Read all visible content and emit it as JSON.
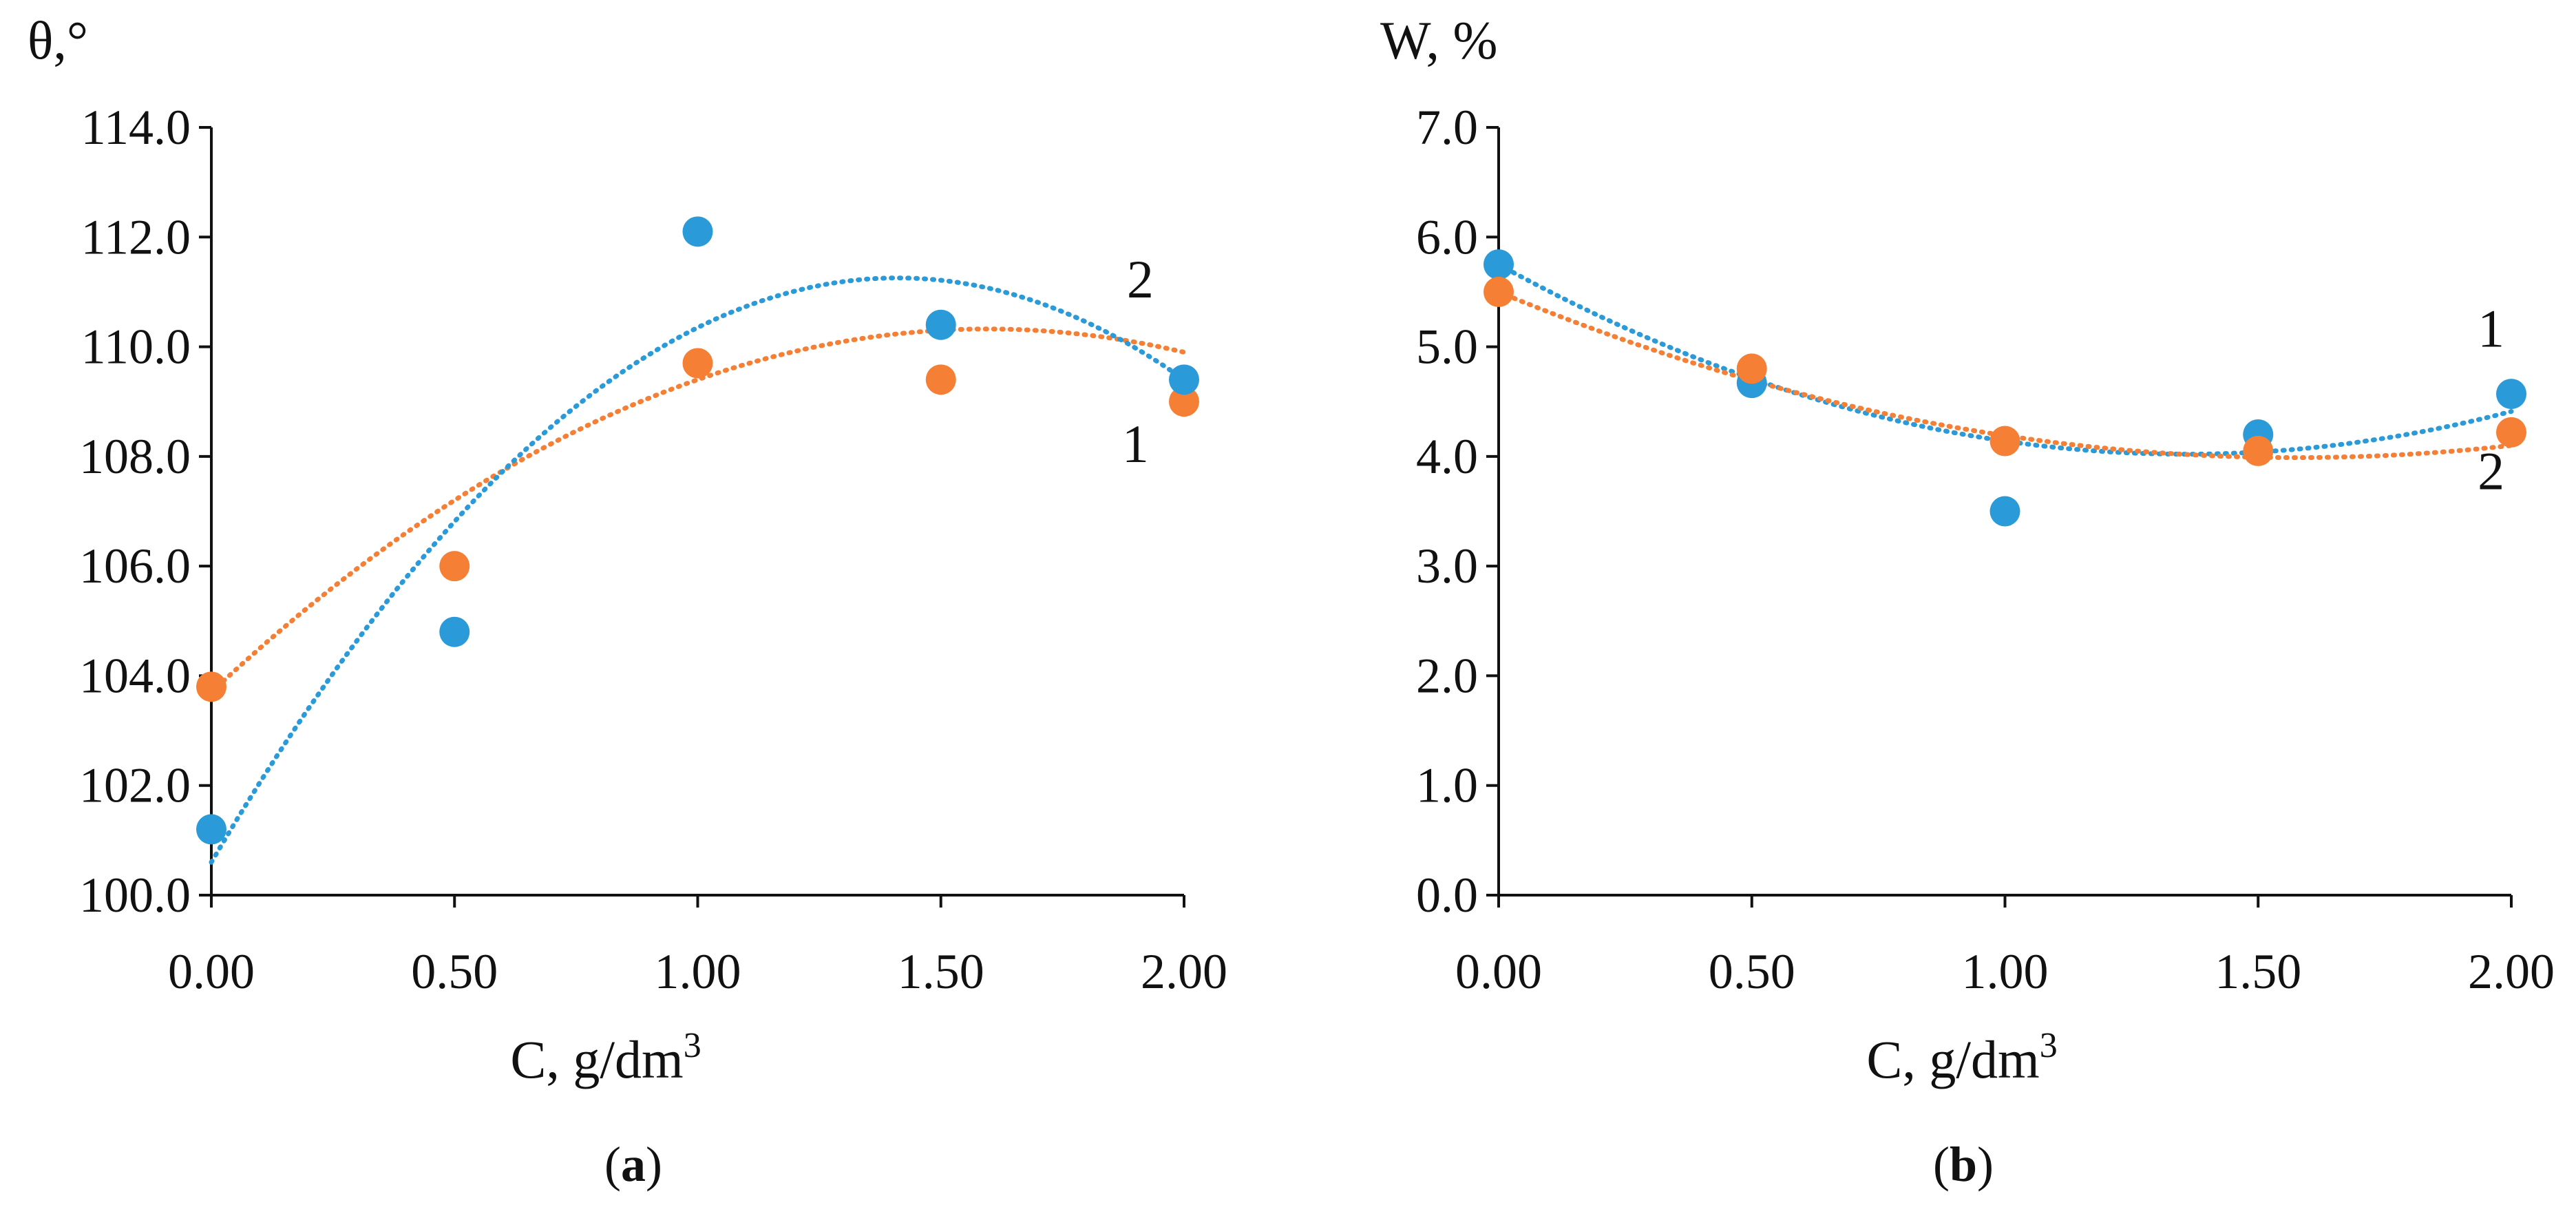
{
  "chart_data": [
    {
      "type": "scatter",
      "panel": "a",
      "panel_label": "a",
      "ylabel": "θ,°",
      "xlabel": "C, g/dm",
      "xlabel_sup": "3",
      "x_ticks": [
        "0.00",
        "0.50",
        "1.00",
        "1.50",
        "2.00"
      ],
      "y_ticks": [
        "100.0",
        "102.0",
        "104.0",
        "106.0",
        "108.0",
        "110.0",
        "112.0",
        "114.0"
      ],
      "xlim": [
        0,
        2
      ],
      "ylim": [
        100,
        114
      ],
      "series": [
        {
          "name": "1",
          "color": "#f47f35",
          "x": [
            0,
            0.5,
            1.0,
            1.5,
            2.0
          ],
          "y": [
            103.8,
            106.0,
            109.7,
            109.4,
            109.0
          ],
          "trend": [
            103.7,
            8.3,
            -2.6
          ]
        },
        {
          "name": "2",
          "color": "#2b9ad8",
          "x": [
            0,
            0.5,
            1.0,
            1.5,
            2.0
          ],
          "y": [
            101.2,
            104.8,
            112.1,
            110.4,
            109.4
          ],
          "trend": [
            100.6,
            15.1,
            -5.35
          ]
        }
      ],
      "curve_labels": [
        {
          "text": "2",
          "x": 1.91,
          "y": 110.9
        },
        {
          "text": "1",
          "x": 1.9,
          "y": 107.9
        }
      ]
    },
    {
      "type": "scatter",
      "panel": "b",
      "panel_label": "b",
      "ylabel": "W, %",
      "xlabel": "C, g/dm",
      "xlabel_sup": "3",
      "x_ticks": [
        "0.00",
        "0.50",
        "1.00",
        "1.50",
        "2.00"
      ],
      "y_ticks": [
        "0.0",
        "1.0",
        "2.0",
        "3.0",
        "4.0",
        "5.0",
        "6.0",
        "7.0"
      ],
      "xlim": [
        0,
        2
      ],
      "ylim": [
        0,
        7
      ],
      "series": [
        {
          "name": "1",
          "color": "#2b9ad8",
          "x": [
            0,
            0.5,
            1.0,
            1.5,
            2.0
          ],
          "y": [
            5.75,
            4.67,
            3.5,
            4.2,
            4.57
          ],
          "trend": [
            5.75,
            -2.55,
            0.94
          ]
        },
        {
          "name": "2",
          "color": "#f47f35",
          "x": [
            0,
            0.5,
            1.0,
            1.5,
            2.0
          ],
          "y": [
            5.5,
            4.8,
            4.14,
            4.05,
            4.22
          ],
          "trend": [
            5.5,
            -1.92,
            0.61
          ]
        }
      ],
      "curve_labels": [
        {
          "text": "1",
          "x": 1.96,
          "y": 5.0
        },
        {
          "text": "2",
          "x": 1.96,
          "y": 3.7
        }
      ]
    }
  ]
}
